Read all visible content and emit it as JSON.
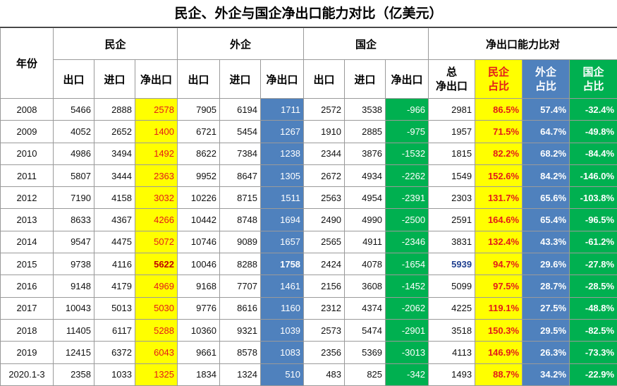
{
  "title": "民企、外企与国企净出口能力对比（亿美元）",
  "header": {
    "year": "年份",
    "groups": [
      "民企",
      "外企",
      "国企",
      "净出口能力比对"
    ],
    "sub": [
      "出口",
      "进口",
      "净出口",
      "出口",
      "进口",
      "净出口",
      "出口",
      "进口",
      "净出口",
      "总\n净出口",
      "民企\n占比",
      "外企\n占比",
      "国企\n占比"
    ]
  },
  "colors": {
    "yellow": "#ffff00",
    "red_text": "#e31a1a",
    "blue": "#4f81bd",
    "green": "#00b050"
  },
  "rows": [
    [
      "2008",
      "5466",
      "2888",
      "2578",
      "7905",
      "6194",
      "1711",
      "2572",
      "3538",
      "-966",
      "2981",
      "86.5%",
      "57.4%",
      "-32.4%"
    ],
    [
      "2009",
      "4052",
      "2652",
      "1400",
      "6721",
      "5454",
      "1267",
      "1910",
      "2885",
      "-975",
      "1957",
      "71.5%",
      "64.7%",
      "-49.8%"
    ],
    [
      "2010",
      "4986",
      "3494",
      "1492",
      "8622",
      "7384",
      "1238",
      "2344",
      "3876",
      "-1532",
      "1815",
      "82.2%",
      "68.2%",
      "-84.4%"
    ],
    [
      "2011",
      "5807",
      "3444",
      "2363",
      "9952",
      "8647",
      "1305",
      "2672",
      "4934",
      "-2262",
      "1549",
      "152.6%",
      "84.2%",
      "-146.0%"
    ],
    [
      "2012",
      "7190",
      "4158",
      "3032",
      "10226",
      "8715",
      "1511",
      "2563",
      "4954",
      "-2391",
      "2303",
      "131.7%",
      "65.6%",
      "-103.8%"
    ],
    [
      "2013",
      "8633",
      "4367",
      "4266",
      "10442",
      "8748",
      "1694",
      "2490",
      "4990",
      "-2500",
      "2591",
      "164.6%",
      "65.4%",
      "-96.5%"
    ],
    [
      "2014",
      "9547",
      "4475",
      "5072",
      "10746",
      "9089",
      "1657",
      "2565",
      "4911",
      "-2346",
      "3831",
      "132.4%",
      "43.3%",
      "-61.2%"
    ],
    [
      "2015",
      "9738",
      "4116",
      "5622",
      "10046",
      "8288",
      "1758",
      "2424",
      "4078",
      "-1654",
      "5939",
      "94.7%",
      "29.6%",
      "-27.8%"
    ],
    [
      "2016",
      "9148",
      "4179",
      "4969",
      "9168",
      "7707",
      "1461",
      "2156",
      "3608",
      "-1452",
      "5099",
      "97.5%",
      "28.7%",
      "-28.5%"
    ],
    [
      "2017",
      "10043",
      "5013",
      "5030",
      "9776",
      "8616",
      "1160",
      "2312",
      "4374",
      "-2062",
      "4225",
      "119.1%",
      "27.5%",
      "-48.8%"
    ],
    [
      "2018",
      "11405",
      "6117",
      "5288",
      "10360",
      "9321",
      "1039",
      "2573",
      "5474",
      "-2901",
      "3518",
      "150.3%",
      "29.5%",
      "-82.5%"
    ],
    [
      "2019",
      "12415",
      "6372",
      "6043",
      "9661",
      "8578",
      "1083",
      "2356",
      "5369",
      "-3013",
      "4113",
      "146.9%",
      "26.3%",
      "-73.3%"
    ],
    [
      "2020.1-3",
      "2358",
      "1033",
      "1325",
      "1834",
      "1324",
      "510",
      "483",
      "825",
      "-342",
      "1493",
      "88.7%",
      "34.2%",
      "-22.9%"
    ]
  ]
}
